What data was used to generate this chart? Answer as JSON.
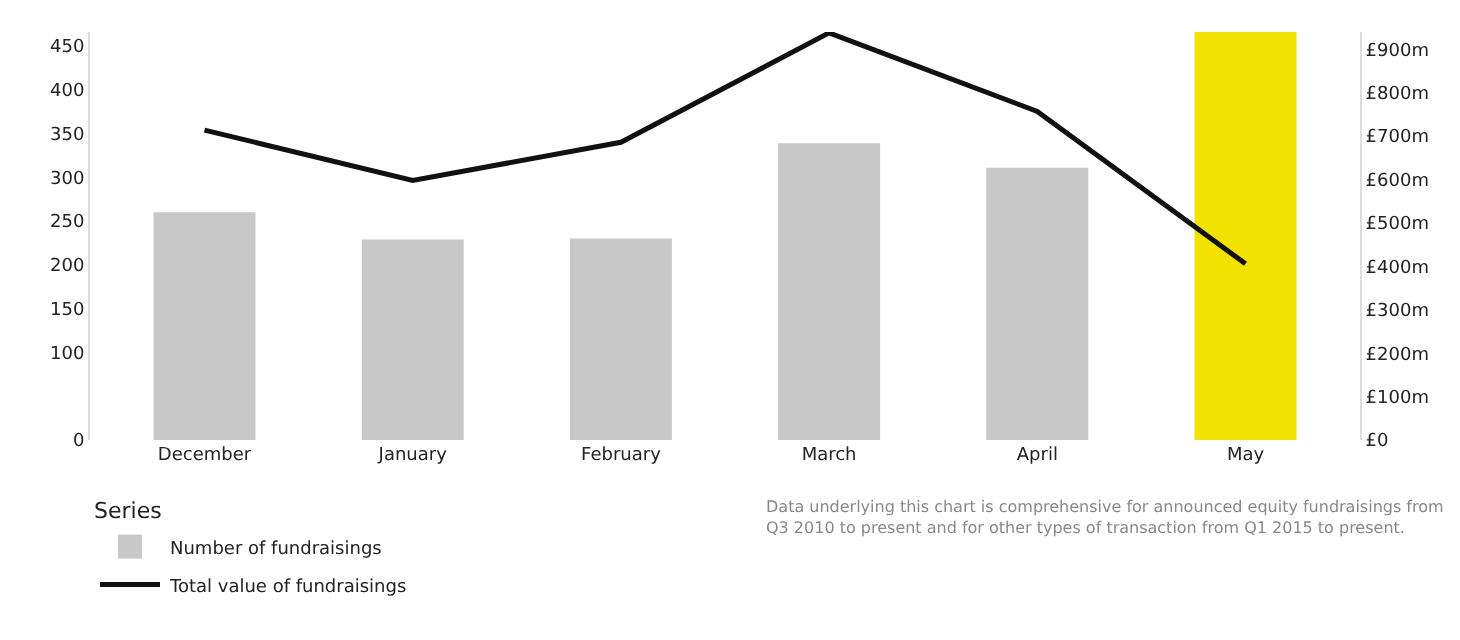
{
  "chart_data": {
    "type": "bar",
    "categories": [
      "December",
      "January",
      "February",
      "March",
      "April",
      "May"
    ],
    "series": [
      {
        "name": "Number of fundraisings",
        "color": "#c8c8c8",
        "colors": [
          "#c8c8c8",
          "#c8c8c8",
          "#c8c8c8",
          "#c8c8c8",
          "#c8c8c8",
          "#f2e200"
        ],
        "values": [
          260,
          229,
          230,
          339,
          311,
          466
        ]
      },
      {
        "name": "Total value of fundraisings",
        "type": "line",
        "axis": "y2",
        "color": "#111111",
        "values": [
          714,
          598,
          686,
          938,
          757,
          406
        ]
      }
    ],
    "ylim": [
      0,
      466
    ],
    "yticks": [
      0,
      100,
      150,
      200,
      250,
      300,
      350,
      400,
      450
    ],
    "y2lim": [
      0,
      940
    ],
    "y2ticks": [
      {
        "value": 0,
        "label": "£0"
      },
      {
        "value": 100,
        "label": "£100m"
      },
      {
        "value": 200,
        "label": "£200m"
      },
      {
        "value": 300,
        "label": "£300m"
      },
      {
        "value": 400,
        "label": "£400m"
      },
      {
        "value": 500,
        "label": "£500m"
      },
      {
        "value": 600,
        "label": "£600m"
      },
      {
        "value": 700,
        "label": "£700m"
      },
      {
        "value": 800,
        "label": "£800m"
      },
      {
        "value": 900,
        "label": "£900m"
      }
    ],
    "legend_title": "Series",
    "legend": "bottom left",
    "marker": "none",
    "line_style": "solid",
    "annotations": [
      "Data underlying this chart is comprehensive for announced equity fundraisings from Q3 2010 to present and for other types of transaction from Q1 2015 to present."
    ]
  }
}
